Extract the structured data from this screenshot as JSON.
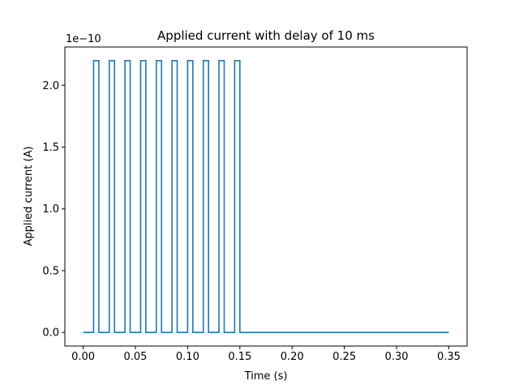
{
  "chart_data": {
    "type": "line",
    "title": "Applied current with delay of 10 ms",
    "xlabel": "Time (s)",
    "ylabel": "Applied current (A)",
    "y_offset_text": "1e−10",
    "xlim": [
      -0.0175,
      0.3675
    ],
    "ylim": [
      -0.11,
      2.31
    ],
    "x_ticks": [
      0.0,
      0.05,
      0.1,
      0.15,
      0.2,
      0.25,
      0.3,
      0.35
    ],
    "x_tick_labels": [
      "0.00",
      "0.05",
      "0.10",
      "0.15",
      "0.20",
      "0.25",
      "0.30",
      "0.35"
    ],
    "y_ticks": [
      0.0,
      0.5,
      1.0,
      1.5,
      2.0
    ],
    "y_tick_labels": [
      "0.0",
      "0.5",
      "1.0",
      "1.5",
      "2.0"
    ],
    "grid": false,
    "line_color": "#1f77b4",
    "series": [
      {
        "x": [
          0.0,
          0.01,
          0.01,
          0.015,
          0.015,
          0.025,
          0.025,
          0.03,
          0.03,
          0.04,
          0.04,
          0.045,
          0.045,
          0.055,
          0.055,
          0.06,
          0.06,
          0.07,
          0.07,
          0.075,
          0.075,
          0.085,
          0.085,
          0.09,
          0.09,
          0.1,
          0.1,
          0.105,
          0.105,
          0.115,
          0.115,
          0.12,
          0.12,
          0.13,
          0.13,
          0.135,
          0.135,
          0.145,
          0.145,
          0.15,
          0.15,
          0.35
        ],
        "y": [
          0,
          0,
          2.2,
          2.2,
          0,
          0,
          2.2,
          2.2,
          0,
          0,
          2.2,
          2.2,
          0,
          0,
          2.2,
          2.2,
          0,
          0,
          2.2,
          2.2,
          0,
          0,
          2.2,
          2.2,
          0,
          0,
          2.2,
          2.2,
          0,
          0,
          2.2,
          2.2,
          0,
          0,
          2.2,
          2.2,
          0,
          0,
          2.2,
          2.2,
          0,
          0
        ]
      }
    ]
  }
}
